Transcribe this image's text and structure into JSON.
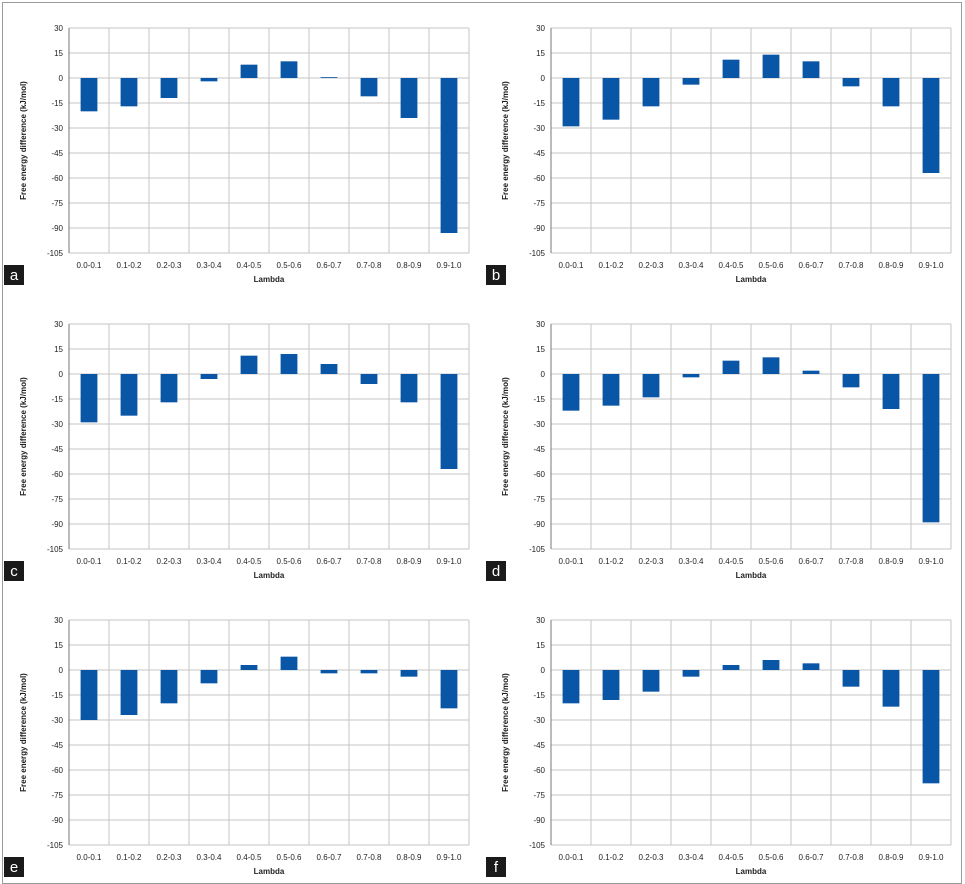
{
  "colors": {
    "bar": "#0a56a6",
    "grid": "#c6c6c6",
    "axis": "#777777",
    "tag_bg": "#1a1a1a"
  },
  "chart_data": [
    {
      "panel": "a",
      "type": "bar",
      "categories": [
        "0.0-0.1",
        "0.1-0.2",
        "0.2-0.3",
        "0.3-0.4",
        "0.4-0.5",
        "0.5-0.6",
        "0.6-0.7",
        "0.7-0.8",
        "0.8-0.9",
        "0.9-1.0"
      ],
      "values": [
        -20,
        -17,
        -12,
        -2,
        8,
        10,
        0.5,
        -11,
        -24,
        -93
      ],
      "xlabel": "Lambda",
      "ylabel": "Free energy difference (kJ/mol)",
      "ylim": [
        -105,
        30
      ],
      "yticks": [
        30,
        15,
        0,
        -15,
        -30,
        -45,
        -60,
        -75,
        -90,
        -105
      ],
      "grid": true
    },
    {
      "panel": "b",
      "type": "bar",
      "categories": [
        "0.0-0.1",
        "0.1-0.2",
        "0.2-0.3",
        "0.3-0.4",
        "0.4-0.5",
        "0.5-0.6",
        "0.6-0.7",
        "0.7-0.8",
        "0.8-0.9",
        "0.9-1.0"
      ],
      "values": [
        -29,
        -25,
        -17,
        -4,
        11,
        14,
        10,
        -5,
        -17,
        -57
      ],
      "xlabel": "Lambda",
      "ylabel": "Free energy difference (kJ/mol)",
      "ylim": [
        -105,
        30
      ],
      "yticks": [
        30,
        15,
        0,
        -15,
        -30,
        -45,
        -60,
        -75,
        -90,
        -105
      ],
      "grid": true
    },
    {
      "panel": "c",
      "type": "bar",
      "categories": [
        "0.0-0.1",
        "0.1-0.2",
        "0.2-0.3",
        "0.3-0.4",
        "0.4-0.5",
        "0.5-0.6",
        "0.6-0.7",
        "0.7-0.8",
        "0.8-0.9",
        "0.9-1.0"
      ],
      "values": [
        -29,
        -25,
        -17,
        -3,
        11,
        12,
        6,
        -6,
        -17,
        -57
      ],
      "xlabel": "Lambda",
      "ylabel": "Free energy difference (kJ/mol)",
      "ylim": [
        -105,
        30
      ],
      "yticks": [
        30,
        15,
        0,
        -15,
        -30,
        -45,
        -60,
        -75,
        -90,
        -105
      ],
      "grid": true
    },
    {
      "panel": "d",
      "type": "bar",
      "categories": [
        "0.0-0.1",
        "0.1-0.2",
        "0.2-0.3",
        "0.3-0.4",
        "0.4-0.5",
        "0.5-0.6",
        "0.6-0.7",
        "0.7-0.8",
        "0.8-0.9",
        "0.9-1.0"
      ],
      "values": [
        -22,
        -19,
        -14,
        -2,
        8,
        10,
        2,
        -8,
        -21,
        -89
      ],
      "xlabel": "Lambda",
      "ylabel": "Free energy difference (kJ/mol)",
      "ylim": [
        -105,
        30
      ],
      "yticks": [
        30,
        15,
        0,
        -15,
        -30,
        -45,
        -60,
        -75,
        -90,
        -105
      ],
      "grid": true
    },
    {
      "panel": "e",
      "type": "bar",
      "categories": [
        "0.0-0.1",
        "0.1-0.2",
        "0.2-0.3",
        "0.3-0.4",
        "0.4-0.5",
        "0.5-0.6",
        "0.6-0.7",
        "0.7-0.8",
        "0.8-0.9",
        "0.9-1.0"
      ],
      "values": [
        -30,
        -27,
        -20,
        -8,
        3,
        8,
        -2,
        -2,
        -4,
        -23
      ],
      "xlabel": "Lambda",
      "ylabel": "Free energy difference (kJ/mol)",
      "ylim": [
        -105,
        30
      ],
      "yticks": [
        30,
        15,
        0,
        -15,
        -30,
        -45,
        -60,
        -75,
        -90,
        -105
      ],
      "grid": true
    },
    {
      "panel": "f",
      "type": "bar",
      "categories": [
        "0.0-0.1",
        "0.1-0.2",
        "0.2-0.3",
        "0.3-0.4",
        "0.4-0.5",
        "0.5-0.6",
        "0.6-0.7",
        "0.7-0.8",
        "0.8-0.9",
        "0.9-1.0"
      ],
      "values": [
        -20,
        -18,
        -13,
        -4,
        3,
        6,
        4,
        -10,
        -22,
        -68
      ],
      "xlabel": "Lambda",
      "ylabel": "Free energy difference (kJ/mol)",
      "ylim": [
        -105,
        30
      ],
      "yticks": [
        30,
        15,
        0,
        -15,
        -30,
        -45,
        -60,
        -75,
        -90,
        -105
      ],
      "grid": true
    }
  ]
}
